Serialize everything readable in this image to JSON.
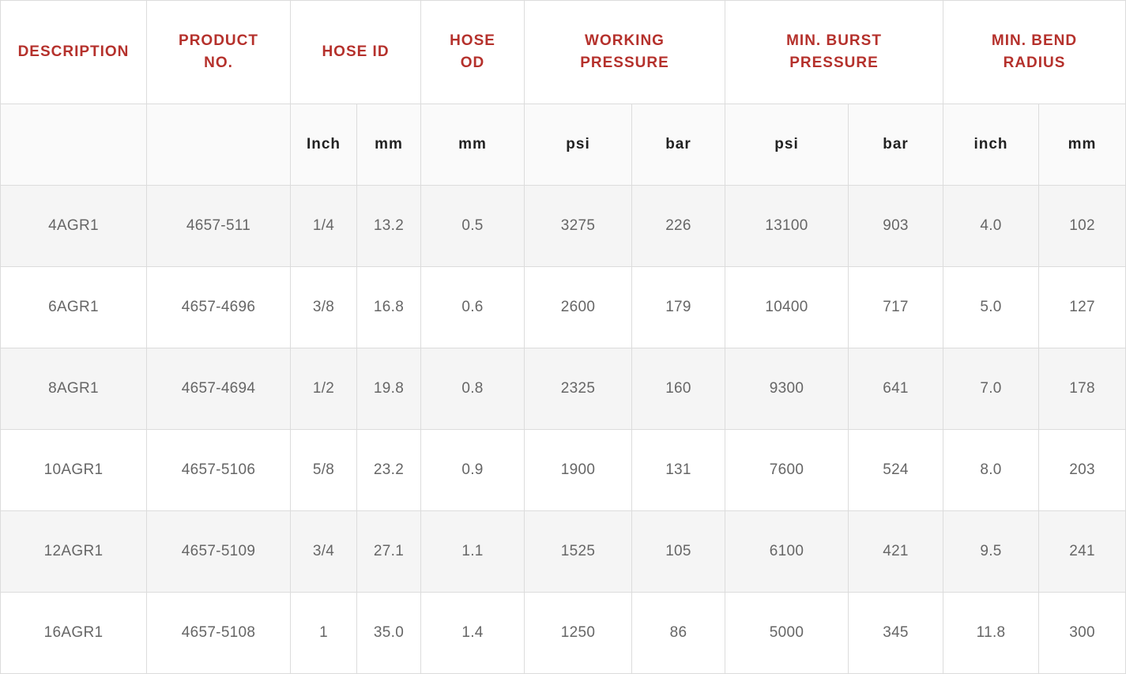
{
  "header": {
    "description": "DESCRIPTION",
    "product_no": "PRODUCT\nNO.",
    "hose_id": "HOSE ID",
    "hose_od": "HOSE\nOD",
    "working_pressure": "WORKING\nPRESSURE",
    "min_burst_pressure": "MIN. BURST\nPRESSURE",
    "min_bend_radius": "MIN. BEND\nRADIUS"
  },
  "units": [
    "Inch",
    "mm",
    "mm",
    "psi",
    "bar",
    "psi",
    "bar",
    "inch",
    "mm"
  ],
  "rows": [
    [
      "4AGR1",
      "4657-511",
      "1/4",
      "13.2",
      "0.5",
      "3275",
      "226",
      "13100",
      "903",
      "4.0",
      "102"
    ],
    [
      "6AGR1",
      "4657-4696",
      "3/8",
      "16.8",
      "0.6",
      "2600",
      "179",
      "10400",
      "717",
      "5.0",
      "127"
    ],
    [
      "8AGR1",
      "4657-4694",
      "1/2",
      "19.8",
      "0.8",
      "2325",
      "160",
      "9300",
      "641",
      "7.0",
      "178"
    ],
    [
      "10AGR1",
      "4657-5106",
      "5/8",
      "23.2",
      "0.9",
      "1900",
      "131",
      "7600",
      "524",
      "8.0",
      "203"
    ],
    [
      "12AGR1",
      "4657-5109",
      "3/4",
      "27.1",
      "1.1",
      "1525",
      "105",
      "6100",
      "421",
      "9.5",
      "241"
    ],
    [
      "16AGR1",
      "4657-5108",
      "1",
      "35.0",
      "1.4",
      "1250",
      "86",
      "5000",
      "345",
      "11.8",
      "300"
    ]
  ],
  "colors": {
    "header_text": "#b5312c",
    "unit_text": "#222222",
    "cell_text": "#666666",
    "border": "#dcdcdc"
  }
}
